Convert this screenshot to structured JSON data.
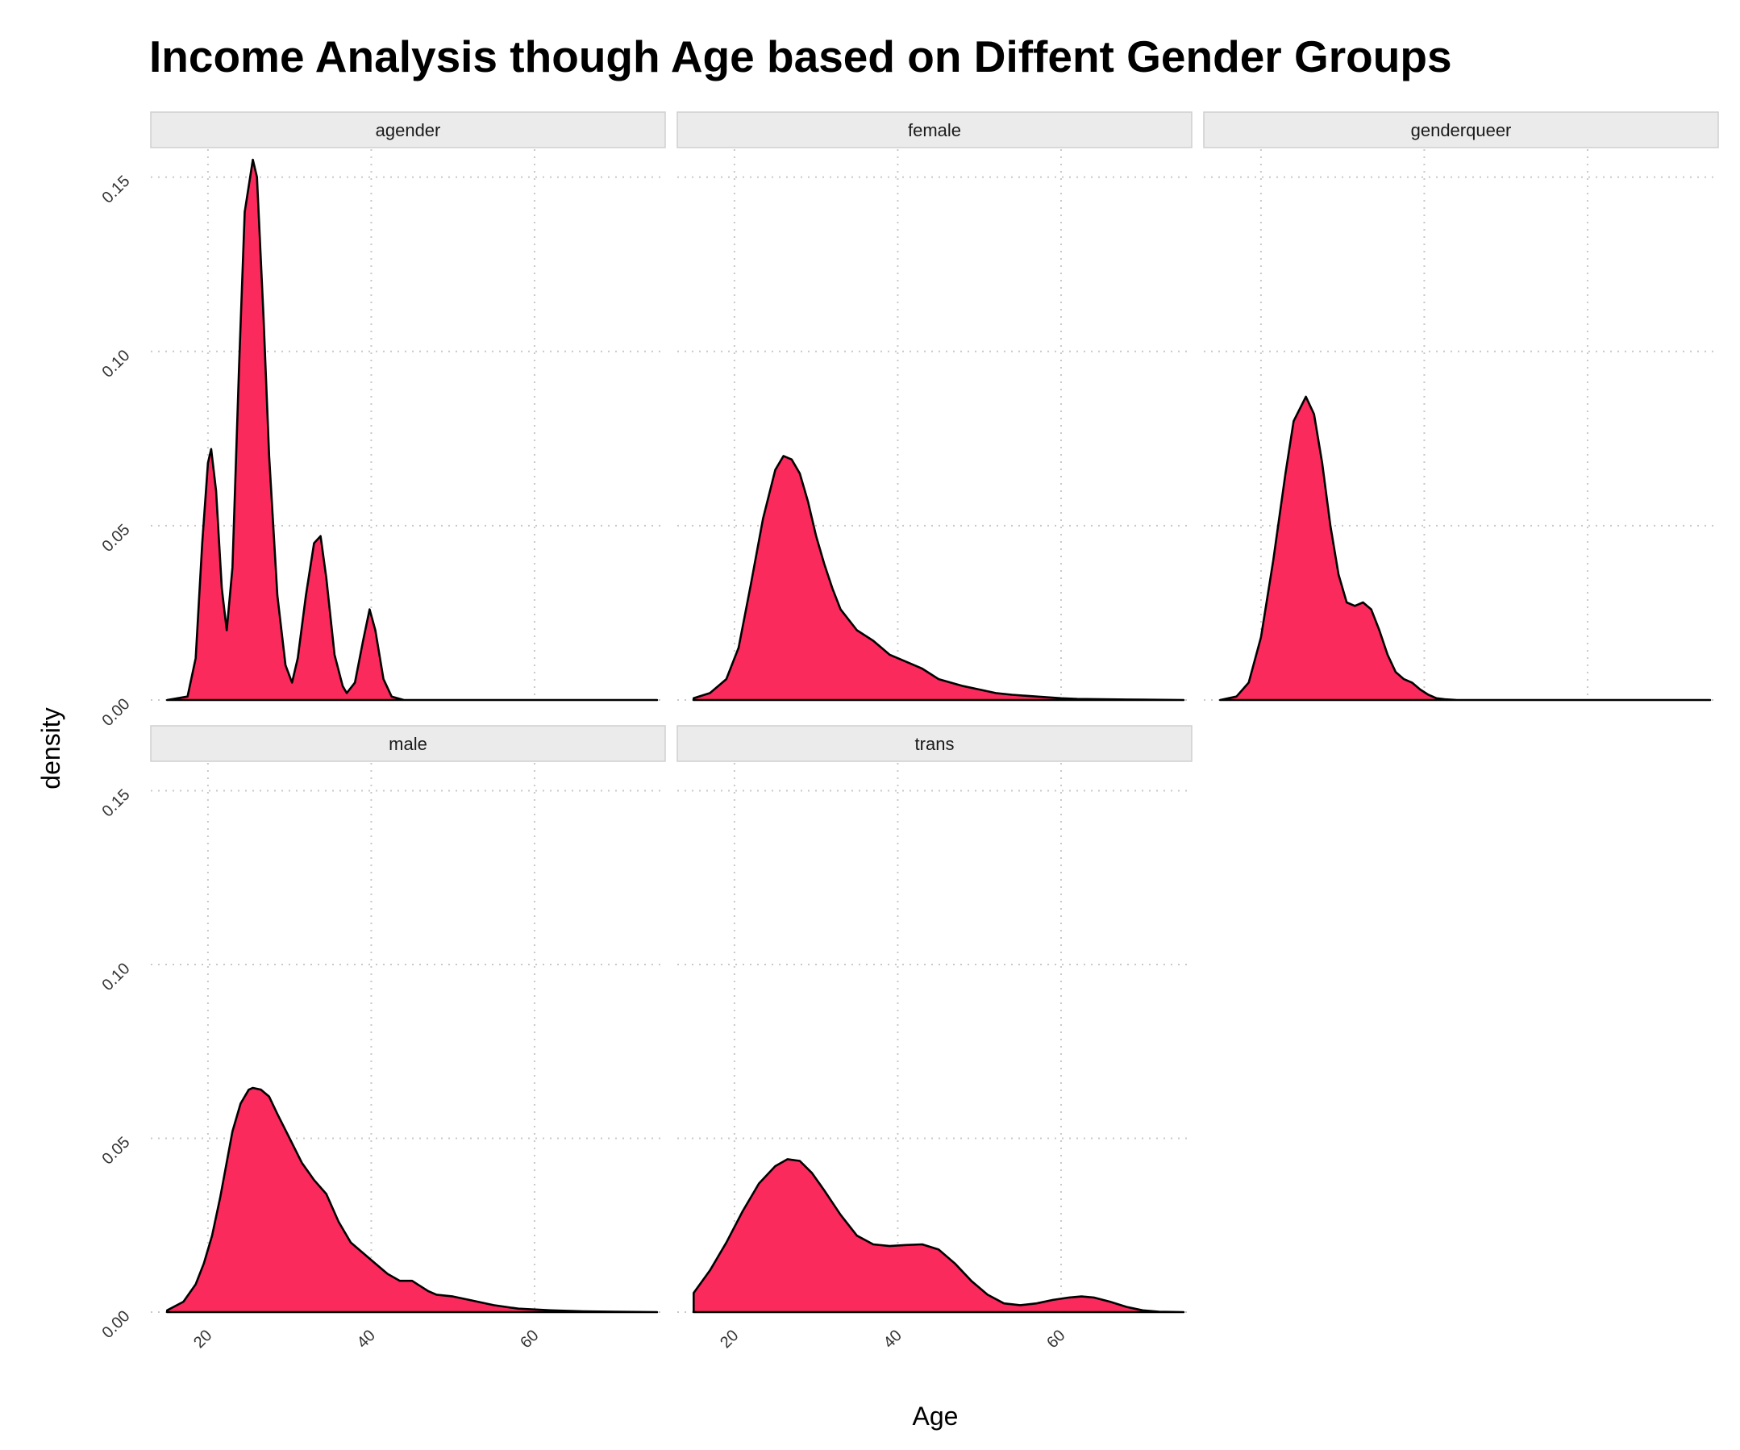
{
  "chart_data": {
    "type": "area",
    "title": "Income Analysis though Age based on Diffent Gender Groups",
    "xlabel": "Age",
    "ylabel": "density",
    "x_ticks": [
      20,
      40,
      60
    ],
    "y_ticks": [
      "0.00",
      "0.05",
      "0.10",
      "0.15"
    ],
    "xlim": [
      13,
      76
    ],
    "ylim": [
      0,
      0.158
    ],
    "grid": true,
    "fill_color": "#FA2A5C",
    "line_color": "#000000",
    "strip_color": "#EBEBEB",
    "panels": [
      {
        "name": "agender",
        "x": [
          15,
          17.5,
          18.5,
          19.3,
          20,
          20.4,
          21,
          21.7,
          22.3,
          23,
          23.8,
          24.5,
          25.5,
          26,
          26.8,
          27.5,
          28.5,
          29.5,
          30.3,
          31,
          32,
          33,
          33.8,
          34.5,
          35.5,
          36.5,
          37,
          38,
          39,
          39.8,
          40.5,
          41.5,
          42.5,
          44,
          75
        ],
        "y": [
          0,
          0.001,
          0.012,
          0.045,
          0.068,
          0.072,
          0.06,
          0.032,
          0.02,
          0.038,
          0.095,
          0.14,
          0.155,
          0.15,
          0.11,
          0.07,
          0.03,
          0.01,
          0.005,
          0.012,
          0.03,
          0.045,
          0.047,
          0.035,
          0.013,
          0.004,
          0.002,
          0.005,
          0.017,
          0.026,
          0.02,
          0.006,
          0.001,
          0,
          0
        ]
      },
      {
        "name": "female",
        "x": [
          15,
          17,
          19,
          20.5,
          22,
          23.5,
          25,
          26,
          27,
          28,
          29,
          30,
          31,
          32,
          33,
          35,
          37,
          39,
          41,
          43,
          45,
          48,
          50,
          52,
          54,
          57,
          60,
          62,
          65,
          70,
          75
        ],
        "y": [
          0.0005,
          0.002,
          0.006,
          0.015,
          0.033,
          0.052,
          0.066,
          0.07,
          0.069,
          0.065,
          0.057,
          0.047,
          0.039,
          0.032,
          0.026,
          0.02,
          0.017,
          0.013,
          0.011,
          0.009,
          0.006,
          0.004,
          0.003,
          0.002,
          0.0015,
          0.001,
          0.0005,
          0.0003,
          0.0002,
          0.0001,
          0
        ]
      },
      {
        "name": "genderqueer",
        "x": [
          15,
          17,
          18.5,
          20,
          21.5,
          23,
          24,
          25.5,
          26.5,
          27.5,
          28.5,
          29.5,
          30.5,
          31.5,
          32.5,
          33.5,
          34.5,
          35.5,
          36.5,
          37.5,
          38.5,
          39.5,
          40.5,
          41.5,
          42.5,
          44,
          75
        ],
        "y": [
          0,
          0.001,
          0.005,
          0.018,
          0.04,
          0.065,
          0.08,
          0.087,
          0.082,
          0.068,
          0.05,
          0.036,
          0.028,
          0.027,
          0.028,
          0.026,
          0.02,
          0.013,
          0.008,
          0.006,
          0.005,
          0.003,
          0.0015,
          0.0005,
          0.0002,
          0,
          0
        ]
      },
      {
        "name": "male",
        "x": [
          15,
          17,
          18.5,
          19.5,
          20.5,
          21.5,
          23,
          24,
          25,
          25.5,
          26.5,
          27.5,
          28.5,
          30,
          31.5,
          33,
          34.5,
          36,
          37.5,
          39,
          40.5,
          42,
          43.5,
          45,
          46,
          47,
          48,
          50,
          52,
          55,
          58,
          62,
          66,
          70,
          75
        ],
        "y": [
          0.0005,
          0.003,
          0.008,
          0.014,
          0.022,
          0.033,
          0.052,
          0.06,
          0.064,
          0.0645,
          0.064,
          0.062,
          0.057,
          0.05,
          0.043,
          0.038,
          0.034,
          0.026,
          0.02,
          0.017,
          0.014,
          0.011,
          0.009,
          0.009,
          0.0075,
          0.006,
          0.005,
          0.0045,
          0.0035,
          0.002,
          0.001,
          0.0005,
          0.0002,
          0.0001,
          0
        ]
      },
      {
        "name": "trans",
        "x": [
          15,
          17,
          19,
          21,
          23,
          25,
          26.5,
          28,
          29.5,
          31,
          33,
          35,
          37,
          39,
          41,
          43,
          45,
          47,
          49,
          51,
          53,
          55,
          57,
          59,
          61,
          62.5,
          64,
          66,
          68,
          70,
          72,
          75
        ],
        "y": [
          0.0055,
          0.012,
          0.02,
          0.029,
          0.037,
          0.042,
          0.044,
          0.0435,
          0.04,
          0.035,
          0.028,
          0.022,
          0.0195,
          0.019,
          0.0193,
          0.0195,
          0.018,
          0.014,
          0.009,
          0.005,
          0.0025,
          0.002,
          0.0025,
          0.0035,
          0.0042,
          0.0045,
          0.0042,
          0.003,
          0.0015,
          0.0005,
          0.0001,
          0
        ]
      }
    ]
  }
}
